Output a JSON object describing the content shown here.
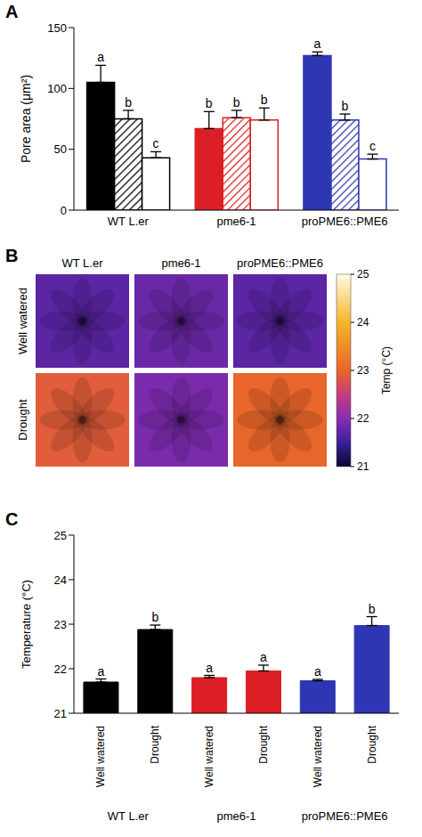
{
  "chart_data": [
    {
      "letter": "A",
      "type": "bar",
      "categories": [
        "WT L.er",
        "pme6-1",
        "proPME6::PME6"
      ],
      "y_label": "Pore area (μm²)",
      "ylim": [
        0,
        150
      ],
      "yticks": [
        0,
        50,
        100,
        150
      ],
      "series": [
        {
          "colors": [
            "#000000",
            "#dc1f26",
            "#2f36b3"
          ],
          "values": [
            105,
            67,
            127
          ],
          "errors": [
            14,
            14,
            3
          ],
          "annotations": [
            "a",
            "b",
            "a"
          ]
        },
        {
          "colors": [
            "#000000",
            "#dc1f26",
            "#2f36b3"
          ],
          "values": [
            75,
            76,
            74
          ],
          "errors": [
            7,
            6,
            5
          ],
          "annotations": [
            "b",
            "b",
            "b"
          ]
        },
        {
          "colors": [
            "#000000",
            "#dc1f26",
            "#2f36b3"
          ],
          "values": [
            43,
            74,
            42
          ],
          "errors": [
            5,
            10,
            4
          ],
          "annotations": [
            "c",
            "b",
            "c"
          ]
        }
      ]
    },
    {
      "letter": "B",
      "type": "image_grid",
      "columns": [
        "WT L.er",
        "pme6-1",
        "proPME6::PME6"
      ],
      "rows": [
        "Well watered",
        "Drought"
      ],
      "cells": [
        [
          21.7,
          21.8,
          21.7
        ],
        [
          22.9,
          21.9,
          23.0
        ]
      ],
      "colorbar": {
        "label": "Temp (°C)",
        "range": [
          21,
          25
        ],
        "ticks": [
          21,
          22,
          23,
          24,
          25
        ]
      }
    },
    {
      "letter": "C",
      "type": "bar",
      "categories": [
        "Well watered",
        "Drought",
        "Well watered",
        "Drought",
        "Well watered",
        "Drought"
      ],
      "groups": [
        "WT L.er",
        "pme6-1",
        "proPME6::PME6"
      ],
      "y_label": "Temperature (°C)",
      "ylim": [
        21,
        25
      ],
      "yticks": [
        21,
        22,
        23,
        24,
        25
      ],
      "values": [
        21.7,
        22.88,
        21.8,
        21.95,
        21.73,
        22.97
      ],
      "errors": [
        0.07,
        0.1,
        0.05,
        0.13,
        0.03,
        0.2
      ],
      "annotations": [
        "a",
        "b",
        "a",
        "a",
        "a",
        "b"
      ],
      "colors": [
        "#000000",
        "#000000",
        "#dc1f26",
        "#dc1f26",
        "#2f36b3",
        "#2f36b3"
      ]
    }
  ]
}
